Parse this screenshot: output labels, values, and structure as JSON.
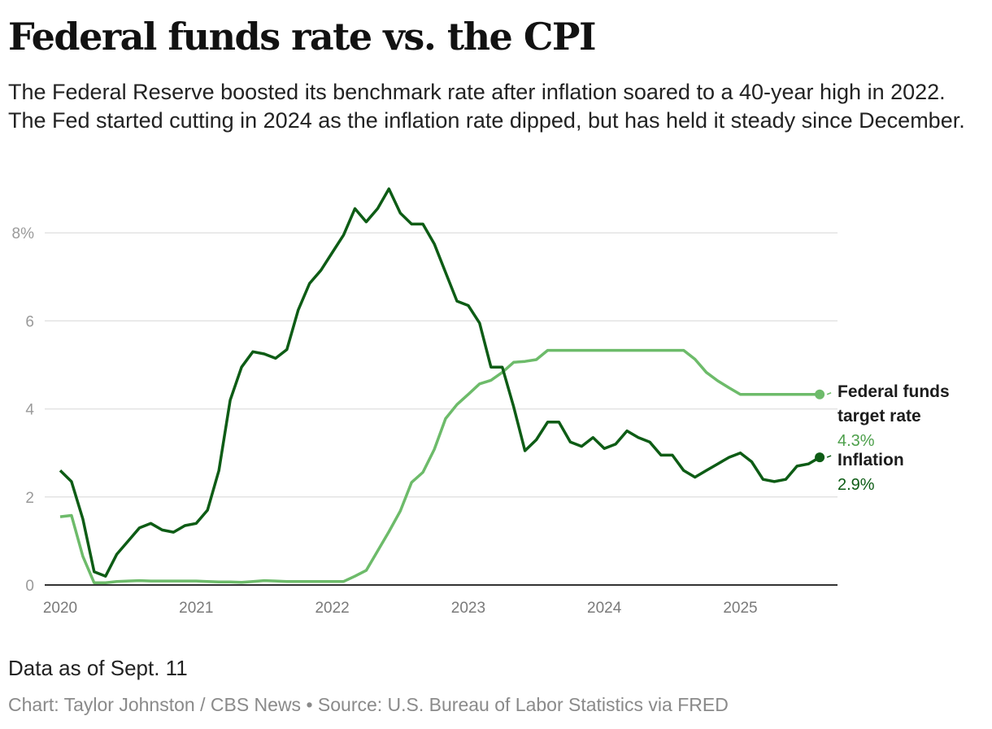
{
  "title": "Federal funds rate vs. the CPI",
  "subtitle": "The Federal Reserve boosted its benchmark rate after inflation soared to a 40-year high in 2022. The Fed started cutting in 2024 as the inflation rate dipped, but has held it steady since December.",
  "note": "Data as of Sept. 11",
  "credit": "Chart: Taylor Johnston / CBS News • Source: U.S. Bureau of Labor Statistics via FRED",
  "chart_data": {
    "type": "line",
    "x_start": "2020-01",
    "x_frequency": "monthly",
    "x_ticks": [
      "2020",
      "2021",
      "2022",
      "2023",
      "2024",
      "2025"
    ],
    "y_ticks": [
      "0",
      "2",
      "4",
      "6",
      "8%"
    ],
    "y_tick_values": [
      0,
      2,
      4,
      6,
      8
    ],
    "ylim": [
      0,
      9
    ],
    "grid": "horizontal",
    "series": [
      {
        "name": "Federal funds target rate",
        "name_lines": [
          "Federal funds",
          "target rate"
        ],
        "end_label": "4.3%",
        "color": "#6dbb6a",
        "label_color": "#4c9f4a",
        "values": [
          1.55,
          1.58,
          0.65,
          0.05,
          0.05,
          0.08,
          0.09,
          0.1,
          0.09,
          0.09,
          0.09,
          0.09,
          0.09,
          0.08,
          0.07,
          0.07,
          0.06,
          0.08,
          0.1,
          0.09,
          0.08,
          0.08,
          0.08,
          0.08,
          0.08,
          0.08,
          0.2,
          0.33,
          0.77,
          1.21,
          1.68,
          2.33,
          2.56,
          3.08,
          3.78,
          4.1,
          4.33,
          4.57,
          4.65,
          4.83,
          5.06,
          5.08,
          5.12,
          5.33,
          5.33,
          5.33,
          5.33,
          5.33,
          5.33,
          5.33,
          5.33,
          5.33,
          5.33,
          5.33,
          5.33,
          5.33,
          5.13,
          4.83,
          4.64,
          4.48,
          4.33,
          4.33,
          4.33,
          4.33,
          4.33,
          4.33,
          4.33,
          4.33
        ]
      },
      {
        "name": "Inflation",
        "name_lines": [
          "Inflation"
        ],
        "end_label": "2.9%",
        "color": "#0d5c15",
        "label_color": "#0d5c15",
        "values": [
          2.6,
          2.35,
          1.5,
          0.3,
          0.2,
          0.7,
          1.0,
          1.3,
          1.4,
          1.25,
          1.2,
          1.35,
          1.4,
          1.7,
          2.6,
          4.2,
          4.95,
          5.3,
          5.25,
          5.15,
          5.35,
          6.25,
          6.85,
          7.15,
          7.55,
          7.95,
          8.55,
          8.25,
          8.55,
          9.0,
          8.45,
          8.2,
          8.2,
          7.75,
          7.1,
          6.45,
          6.35,
          5.95,
          4.95,
          4.95,
          4.05,
          3.05,
          3.3,
          3.7,
          3.7,
          3.25,
          3.15,
          3.35,
          3.1,
          3.2,
          3.5,
          3.35,
          3.25,
          2.95,
          2.95,
          2.6,
          2.45,
          2.6,
          2.75,
          2.9,
          3.0,
          2.8,
          2.4,
          2.35,
          2.4,
          2.7,
          2.75,
          2.9
        ]
      }
    ]
  }
}
